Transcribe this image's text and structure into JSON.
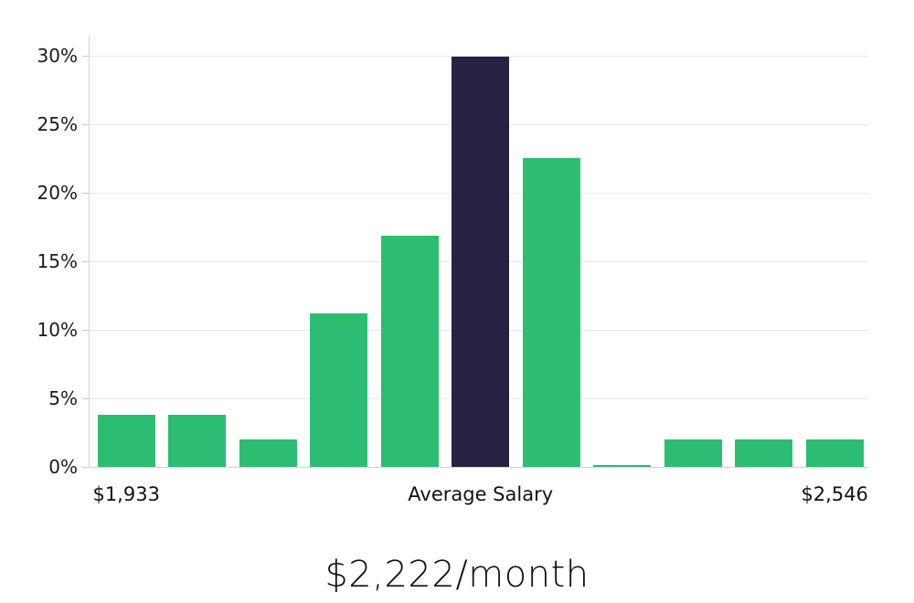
{
  "footer": {
    "title": "$2,222/month"
  },
  "chart_data": {
    "type": "bar",
    "title": "$2,222/month",
    "values": [
      3.8,
      3.8,
      2.0,
      11.2,
      16.9,
      29.9,
      22.5,
      0.15,
      2.0,
      2.0,
      2.0
    ],
    "highlight_index": 5,
    "bar_color": "#2DBD71",
    "highlight_color": "#252244",
    "yticks": [
      0,
      5,
      10,
      15,
      20,
      25,
      30
    ],
    "ytick_suffix": "%",
    "ylim": [
      0,
      31.5
    ],
    "grid": true,
    "legend": "none",
    "xlabels": [
      {
        "text": "$1,933",
        "bar": 0
      },
      {
        "text": "Average Salary",
        "bar": 5
      },
      {
        "text": "$2,546",
        "bar": 10
      }
    ]
  }
}
